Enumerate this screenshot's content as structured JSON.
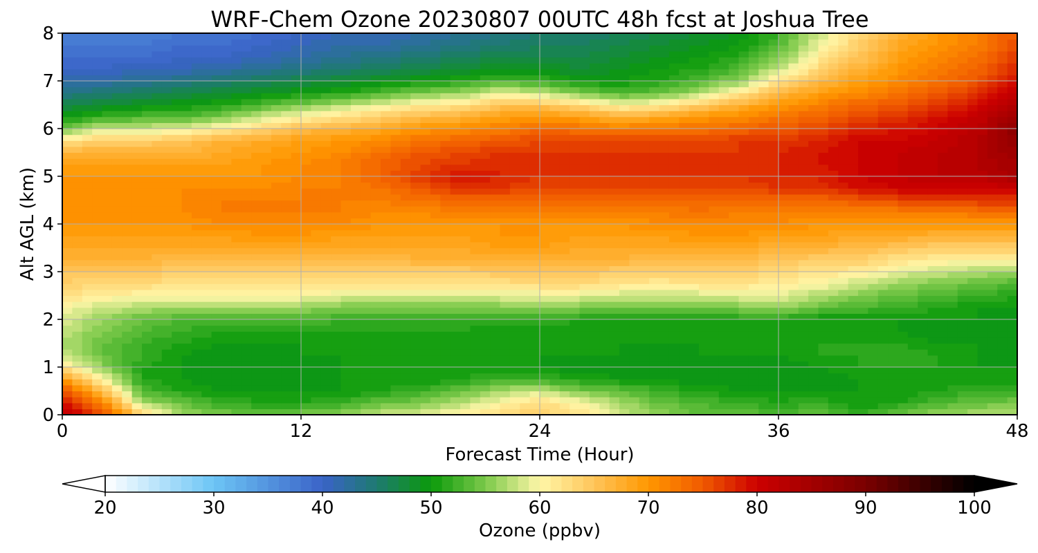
{
  "chart_data": {
    "type": "heatmap",
    "title": "WRF-Chem Ozone  20230807 00UTC 48h fcst at Joshua Tree",
    "xlabel": "Forecast Time (Hour)",
    "ylabel": "Alt AGL (km)",
    "xlim": [
      0,
      48
    ],
    "ylim": [
      0,
      8
    ],
    "xticks": [
      0,
      12,
      24,
      36,
      48
    ],
    "yticks": [
      0,
      1,
      2,
      3,
      4,
      5,
      6,
      7,
      8
    ],
    "grid": true,
    "x_hours": [
      0,
      2,
      4,
      6,
      8,
      10,
      12,
      14,
      16,
      18,
      20,
      22,
      24,
      26,
      28,
      30,
      32,
      34,
      36,
      38,
      40,
      42,
      44,
      46,
      48
    ],
    "y_km": [
      0,
      0.25,
      0.5,
      0.75,
      1,
      1.25,
      1.5,
      1.75,
      2,
      2.25,
      2.5,
      2.75,
      3,
      3.25,
      3.5,
      3.75,
      4,
      4.25,
      4.5,
      4.75,
      5,
      5.25,
      5.5,
      5.75,
      6,
      6.25,
      6.5,
      6.75,
      7,
      7.25,
      7.5,
      7.75,
      8
    ],
    "ozone_ppbv": [
      [
        82,
        76,
        64,
        56,
        55,
        54,
        55,
        56,
        58,
        59,
        61,
        63,
        64,
        62,
        58,
        56,
        54,
        54,
        53,
        54,
        52,
        54,
        56,
        57,
        57
      ],
      [
        80,
        72,
        57,
        54,
        52,
        51,
        51,
        52,
        54,
        55,
        57,
        60,
        63,
        60,
        57,
        54,
        53,
        52,
        51,
        52,
        50,
        51,
        53,
        54,
        55
      ],
      [
        76,
        66,
        53,
        51,
        50,
        50,
        50,
        50,
        51,
        52,
        54,
        57,
        58,
        55,
        54,
        52,
        51,
        50,
        50,
        50,
        50,
        50,
        51,
        52,
        52
      ],
      [
        70,
        60,
        51,
        50,
        49,
        49,
        49,
        50,
        50,
        50,
        51,
        52,
        52,
        51,
        50,
        50,
        49,
        49,
        49,
        49,
        50,
        50,
        50,
        50,
        50
      ],
      [
        62,
        56,
        51,
        50,
        49,
        49,
        49,
        50,
        50,
        50,
        50,
        50,
        50,
        49,
        49,
        49,
        49,
        49,
        49,
        50,
        51,
        51,
        51,
        50,
        50
      ],
      [
        58,
        54,
        52,
        50,
        49,
        49,
        50,
        50,
        50,
        50,
        50,
        50,
        50,
        50,
        50,
        49,
        50,
        50,
        50,
        51,
        51,
        52,
        51,
        50,
        49
      ],
      [
        57,
        54,
        52,
        51,
        50,
        50,
        50,
        50,
        50,
        50,
        50,
        50,
        50,
        50,
        50,
        50,
        50,
        50,
        50,
        51,
        51,
        51,
        50,
        50,
        49
      ],
      [
        58,
        55,
        53,
        52,
        51,
        51,
        51,
        51,
        51,
        51,
        51,
        50,
        50,
        50,
        50,
        50,
        50,
        50,
        50,
        50,
        50,
        50,
        49,
        49,
        49
      ],
      [
        59,
        56,
        54,
        53,
        53,
        53,
        53,
        52,
        52,
        52,
        52,
        52,
        52,
        51,
        51,
        51,
        51,
        51,
        51,
        50,
        50,
        50,
        50,
        50,
        49
      ],
      [
        60,
        58,
        57,
        56,
        56,
        56,
        56,
        55,
        55,
        55,
        55,
        55,
        55,
        55,
        54,
        54,
        54,
        55,
        56,
        54,
        53,
        52,
        51,
        50,
        50
      ],
      [
        62,
        61,
        60,
        60,
        60,
        60,
        60,
        59,
        58,
        58,
        58,
        59,
        59,
        59,
        58,
        58,
        58,
        59,
        59,
        57,
        55,
        54,
        53,
        52,
        51
      ],
      [
        64,
        63,
        63,
        62,
        62,
        62,
        62,
        62,
        62,
        62,
        62,
        62,
        63,
        63,
        62,
        61,
        62,
        62,
        61,
        60,
        58,
        56,
        55,
        54,
        53
      ],
      [
        65,
        65,
        65,
        64,
        64,
        64,
        64,
        64,
        64,
        64,
        64,
        65,
        65,
        65,
        64,
        64,
        64,
        64,
        63,
        62,
        61,
        59,
        58,
        57,
        56
      ],
      [
        67,
        67,
        67,
        66,
        66,
        66,
        66,
        66,
        66,
        67,
        67,
        67,
        67,
        67,
        67,
        66,
        66,
        66,
        65,
        64,
        64,
        62,
        61,
        60,
        60
      ],
      [
        68,
        68,
        68,
        68,
        68,
        68,
        68,
        68,
        68,
        68,
        68,
        69,
        69,
        68,
        68,
        68,
        68,
        68,
        67,
        67,
        66,
        65,
        64,
        64,
        64
      ],
      [
        69,
        69,
        69,
        69,
        69,
        70,
        70,
        69,
        69,
        69,
        69,
        70,
        70,
        69,
        69,
        69,
        70,
        70,
        69,
        69,
        68,
        68,
        67,
        67,
        67
      ],
      [
        70,
        70,
        70,
        70,
        71,
        71,
        71,
        71,
        70,
        70,
        70,
        70,
        70,
        70,
        70,
        71,
        71,
        71,
        71,
        70,
        70,
        70,
        70,
        70,
        70
      ],
      [
        70,
        70,
        70,
        71,
        72,
        72,
        72,
        72,
        71,
        71,
        72,
        72,
        72,
        72,
        72,
        72,
        73,
        72,
        72,
        72,
        72,
        72,
        72,
        73,
        73
      ],
      [
        70,
        70,
        70,
        71,
        72,
        72,
        72,
        72,
        72,
        73,
        74,
        74,
        74,
        74,
        74,
        74,
        74,
        74,
        74,
        74,
        75,
        76,
        76,
        77,
        77
      ],
      [
        70,
        70,
        70,
        71,
        71,
        71,
        72,
        72,
        73,
        75,
        77,
        77,
        76,
        76,
        76,
        76,
        76,
        76,
        77,
        77,
        79,
        80,
        80,
        80,
        81
      ],
      [
        70,
        70,
        70,
        70,
        70,
        70,
        71,
        72,
        74,
        77,
        79,
        78,
        77,
        77,
        77,
        77,
        77,
        77,
        78,
        78,
        80,
        81,
        82,
        82,
        84
      ],
      [
        69,
        69,
        69,
        69,
        69,
        70,
        71,
        72,
        74,
        76,
        77,
        78,
        77,
        77,
        77,
        77,
        77,
        77,
        78,
        79,
        80,
        81,
        82,
        83,
        85
      ],
      [
        67,
        67,
        67,
        67,
        68,
        69,
        70,
        71,
        73,
        75,
        76,
        77,
        77,
        77,
        77,
        77,
        77,
        77,
        78,
        79,
        80,
        81,
        82,
        83,
        86
      ],
      [
        62,
        64,
        64,
        65,
        67,
        68,
        69,
        70,
        71,
        73,
        74,
        75,
        76,
        76,
        76,
        76,
        76,
        77,
        77,
        78,
        80,
        80,
        81,
        83,
        87
      ],
      [
        54,
        58,
        58,
        59,
        61,
        63,
        66,
        67,
        68,
        70,
        71,
        72,
        74,
        73,
        72,
        73,
        73,
        74,
        75,
        76,
        78,
        79,
        80,
        82,
        88
      ],
      [
        50,
        52,
        53,
        53,
        55,
        58,
        60,
        62,
        64,
        66,
        67,
        69,
        70,
        69,
        67,
        68,
        70,
        71,
        73,
        74,
        76,
        77,
        79,
        81,
        86
      ],
      [
        47,
        48,
        49,
        50,
        51,
        53,
        55,
        57,
        59,
        61,
        62,
        65,
        65,
        63,
        60,
        61,
        64,
        67,
        70,
        72,
        74,
        75,
        77,
        79,
        84
      ],
      [
        44,
        45,
        46,
        47,
        48,
        49,
        50,
        51,
        53,
        55,
        56,
        59,
        58,
        55,
        53,
        54,
        57,
        61,
        66,
        69,
        71,
        73,
        75,
        77,
        82
      ],
      [
        42,
        42,
        43,
        44,
        45,
        46,
        47,
        48,
        49,
        50,
        51,
        53,
        52,
        50,
        50,
        51,
        53,
        56,
        62,
        66,
        69,
        71,
        73,
        75,
        80
      ],
      [
        40,
        40,
        41,
        41,
        42,
        43,
        44,
        45,
        46,
        47,
        48,
        49,
        49,
        48,
        49,
        50,
        51,
        53,
        58,
        63,
        67,
        70,
        72,
        74,
        78
      ],
      [
        39,
        39,
        39,
        40,
        40,
        41,
        42,
        43,
        44,
        45,
        46,
        47,
        47,
        47,
        48,
        49,
        50,
        51,
        55,
        61,
        65,
        69,
        71,
        73,
        77
      ],
      [
        38,
        38,
        38,
        39,
        39,
        40,
        41,
        42,
        42,
        43,
        44,
        45,
        46,
        46,
        47,
        48,
        49,
        50,
        53,
        59,
        64,
        68,
        70,
        72,
        76
      ],
      [
        37,
        37,
        37,
        38,
        38,
        39,
        40,
        41,
        41,
        42,
        43,
        44,
        45,
        45,
        46,
        47,
        48,
        49,
        52,
        58,
        63,
        67,
        70,
        72,
        75
      ]
    ],
    "colorbar": {
      "label": "Ozone  (ppbv)",
      "min": 20,
      "max": 100,
      "step": 1,
      "ticks": [
        20,
        30,
        40,
        50,
        60,
        70,
        80,
        90,
        100
      ],
      "extend": "both",
      "orientation": "horizontal",
      "placement": "bottom"
    },
    "colormap_anchors": [
      {
        "v": 20,
        "color": "#ffffff"
      },
      {
        "v": 30,
        "color": "#6cc5f5"
      },
      {
        "v": 40,
        "color": "#3a63c8"
      },
      {
        "v": 45,
        "color": "#1e7a70"
      },
      {
        "v": 50,
        "color": "#0b9a0b"
      },
      {
        "v": 55,
        "color": "#7cc94a"
      },
      {
        "v": 60,
        "color": "#fff7a8"
      },
      {
        "v": 65,
        "color": "#ffc55a"
      },
      {
        "v": 70,
        "color": "#ff9700"
      },
      {
        "v": 75,
        "color": "#f05a00"
      },
      {
        "v": 80,
        "color": "#cc0000"
      },
      {
        "v": 90,
        "color": "#7a0000"
      },
      {
        "v": 100,
        "color": "#000000"
      }
    ],
    "extend_low_color": "#ffffff",
    "extend_high_color": "#000000"
  }
}
